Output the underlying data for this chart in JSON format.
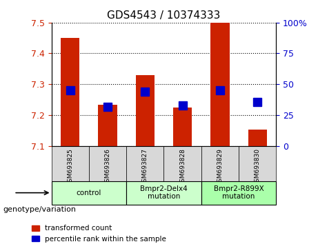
{
  "title": "GDS4543 / 10374333",
  "samples": [
    "GSM693825",
    "GSM693826",
    "GSM693827",
    "GSM693828",
    "GSM693829",
    "GSM693830"
  ],
  "bar_values": [
    7.45,
    7.235,
    7.33,
    7.225,
    7.5,
    7.155
  ],
  "percentile_values": [
    45,
    32,
    44,
    33,
    45,
    36
  ],
  "ylim_left": [
    7.1,
    7.5
  ],
  "ylim_right": [
    0,
    100
  ],
  "yticks_left": [
    7.1,
    7.2,
    7.3,
    7.4,
    7.5
  ],
  "yticks_right": [
    0,
    25,
    50,
    75,
    100
  ],
  "bar_color": "#cc2200",
  "marker_color": "#0000cc",
  "groups": [
    {
      "label": "control",
      "samples": [
        0,
        1
      ],
      "color": "#ccffcc"
    },
    {
      "label": "Bmpr2-Delx4\nmutation",
      "samples": [
        2,
        3
      ],
      "color": "#ccffcc"
    },
    {
      "label": "Bmpr2-R899X\nmutation",
      "samples": [
        4,
        5
      ],
      "color": "#aaffaa"
    }
  ],
  "legend_items": [
    {
      "color": "#cc2200",
      "label": "transformed count"
    },
    {
      "color": "#0000cc",
      "label": "percentile rank within the sample"
    }
  ],
  "xlabel_text": "genotype/variation",
  "tick_label_color_left": "#cc2200",
  "tick_label_color_right": "#0000cc",
  "bar_bottom": 7.1,
  "marker_size": 8
}
